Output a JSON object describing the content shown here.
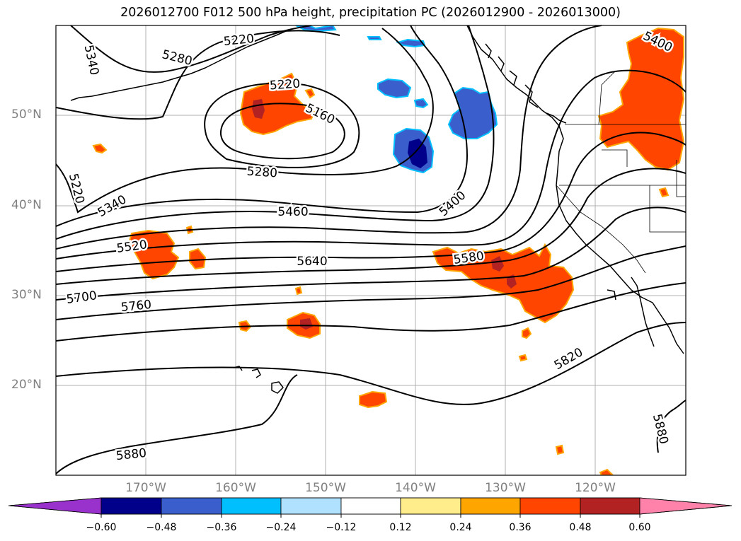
{
  "title": "2026012700 F012 500 hPa height, precipitation PC (2026012900 - 2026013000)",
  "lat_labels": [
    "50°N",
    "40°N",
    "30°N",
    "20°N"
  ],
  "lon_labels": [
    "170°W",
    "160°W",
    "150°W",
    "140°W",
    "130°W",
    "120°W"
  ],
  "colorbar": {
    "ticks": [
      "−0.60",
      "−0.48",
      "−0.36",
      "−0.24",
      "−0.12",
      "0.12",
      "0.24",
      "0.36",
      "0.48",
      "0.60"
    ],
    "colors": [
      "#9932cc",
      "#00008b",
      "#3a5fcd",
      "#00bfff",
      "#b0e2ff",
      "#ffffff",
      "#ffec8b",
      "#ffa500",
      "#ff4500",
      "#b22222",
      "#ff82ab"
    ]
  },
  "contour_labels": [
    "5340",
    "5280",
    "5220",
    "5220",
    "5160",
    "5280",
    "5220",
    "5340",
    "5460",
    "5400",
    "5400",
    "5520",
    "5640",
    "5580",
    "5700",
    "5760",
    "5820",
    "5880",
    "5880"
  ]
}
